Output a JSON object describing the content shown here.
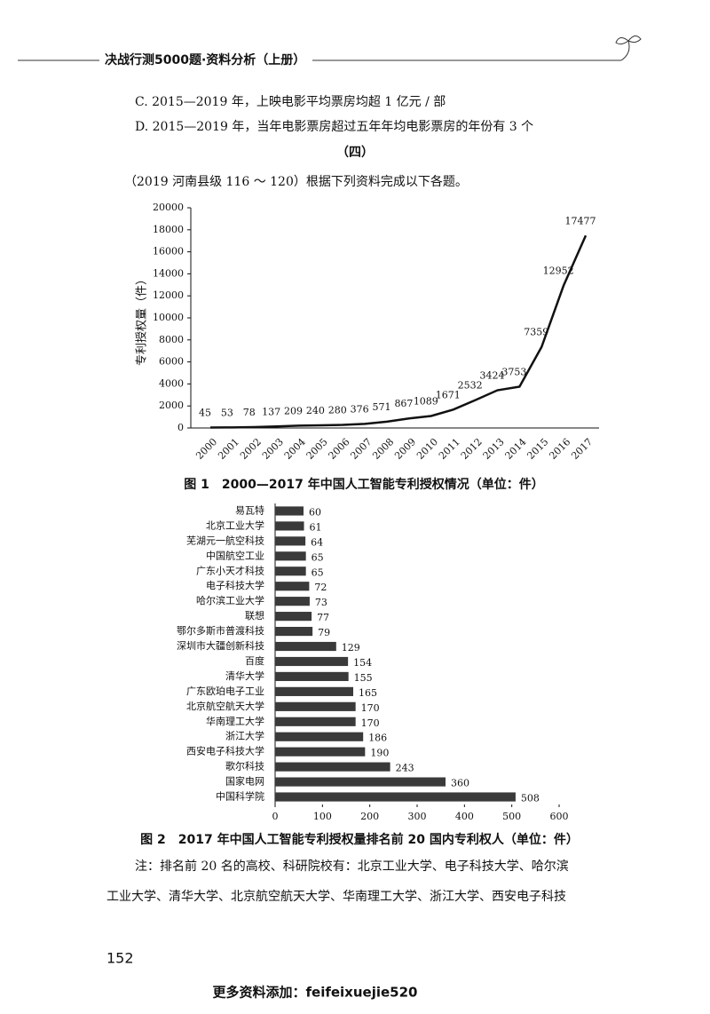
{
  "header": {
    "title": "决战行测5000题·资料分析（上册）"
  },
  "lines": [
    "C. 2015—2019 年，上映电影平均票房均超 1 亿元 / 部",
    "D. 2015—2019 年，当年电影票房超过五年年均电影票房的年份有 3 个",
    "（四）",
    "（2019 河南县级 116 ～ 120）根据下列资料完成以下各题。"
  ],
  "chart_data": [
    {
      "type": "line",
      "title": "图 1　2000—2017 年中国人工智能专利授权情况（单位：件）",
      "y_label": "专利授权量（件）",
      "categories": [
        "2000",
        "2001",
        "2002",
        "2003",
        "2004",
        "2005",
        "2006",
        "2007",
        "2008",
        "2009",
        "2010",
        "2011",
        "2012",
        "2013",
        "2014",
        "2015",
        "2016",
        "2017"
      ],
      "values": [
        45,
        53,
        78,
        137,
        209,
        240,
        280,
        376,
        571,
        867,
        1089,
        1671,
        2532,
        3424,
        3753,
        7359,
        12952,
        17477
      ],
      "color": "#111111",
      "ylim": [
        0,
        20000
      ],
      "yticks": [
        0,
        2000,
        4000,
        6000,
        8000,
        10000,
        12000,
        14000,
        16000,
        18000,
        20000
      ]
    },
    {
      "type": "bar",
      "orientation": "horizontal",
      "title": "图 2　2017 年中国人工智能专利授权量排名前 20 国内专利权人（单位：件）",
      "categories": [
        "易瓦特",
        "北京工业大学",
        "芜湖元一航空科技",
        "中国航空工业",
        "广东小天才科技",
        "电子科技大学",
        "哈尔滨工业大学",
        "联想",
        "鄂尔多斯市普渡科技",
        "深圳市大疆创新科技",
        "百度",
        "清华大学",
        "广东欧珀电子工业",
        "北京航空航天大学",
        "华南理工大学",
        "浙江大学",
        "西安电子科技大学",
        "歌尔科技",
        "国家电网",
        "中国科学院"
      ],
      "values": [
        60,
        61,
        64,
        65,
        65,
        72,
        73,
        77,
        79,
        129,
        154,
        155,
        165,
        170,
        170,
        186,
        190,
        243,
        360,
        508
      ],
      "color": "#3a3a3a",
      "xlim": [
        0,
        600
      ],
      "xticks": [
        0,
        100,
        200,
        300,
        400,
        500,
        600
      ]
    }
  ],
  "note": [
    "注：排名前 20 名的高校、科研院校有：北京工业大学、电子科技大学、哈尔滨",
    "工业大学、清华大学、北京航空航天大学、华南理工大学、浙江大学、西安电子科技"
  ],
  "page_number": "152",
  "footer": "更多资料添加：feifeixuejie520"
}
